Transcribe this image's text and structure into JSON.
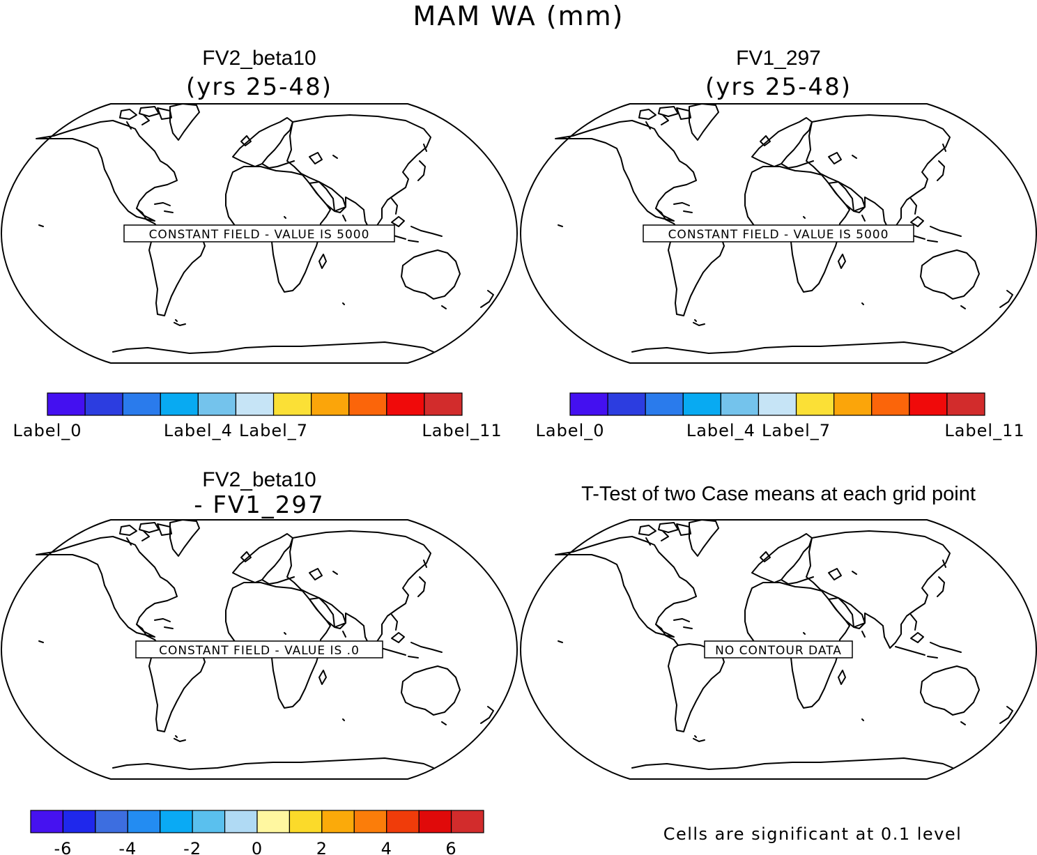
{
  "title": "MAM WA (mm)",
  "panels": [
    {
      "title": "FV2_beta10",
      "subtitle": "(yrs 25-48)",
      "message": "CONSTANT FIELD - VALUE IS 5000"
    },
    {
      "title": "FV1_297",
      "subtitle": "(yrs 25-48)",
      "message": "CONSTANT FIELD - VALUE IS 5000"
    },
    {
      "title": "FV2_beta10",
      "subtitle": "- FV1_297",
      "message": "CONSTANT FIELD - VALUE IS .0"
    },
    {
      "title": "T-Test of two Case means at each grid point",
      "subtitle": "",
      "message": "NO CONTOUR DATA"
    }
  ],
  "colorbar_top": {
    "colors": [
      "#4410f0",
      "#2c3de0",
      "#2a7bec",
      "#08aaf2",
      "#74c3ec",
      "#c6e4f6",
      "#fbe036",
      "#fba50a",
      "#fb650a",
      "#f00a0a",
      "#d22c2c"
    ],
    "labels": [
      {
        "text": "Label_0",
        "boundary": 0
      },
      {
        "text": "Label_4",
        "boundary": 4
      },
      {
        "text": "Label_7",
        "boundary": 6
      },
      {
        "text": "Label_11",
        "boundary": 11
      }
    ]
  },
  "colorbar_diff": {
    "colors": [
      "#4612f0",
      "#1f28ec",
      "#3d6ee0",
      "#238cf2",
      "#0aaaf4",
      "#5ac0ee",
      "#b0daf4",
      "#fff7a0",
      "#fbda2a",
      "#fbaa0a",
      "#fb7d0a",
      "#f03c0a",
      "#e00a0a",
      "#d22c2c"
    ],
    "labels": [
      {
        "text": "-6",
        "boundary": 1
      },
      {
        "text": "-4",
        "boundary": 3
      },
      {
        "text": "-2",
        "boundary": 5
      },
      {
        "text": "0",
        "boundary": 7
      },
      {
        "text": "2",
        "boundary": 9
      },
      {
        "text": "4",
        "boundary": 11
      },
      {
        "text": "6",
        "boundary": 13
      }
    ]
  },
  "significance_note": "Cells are significant at 0.1 level"
}
